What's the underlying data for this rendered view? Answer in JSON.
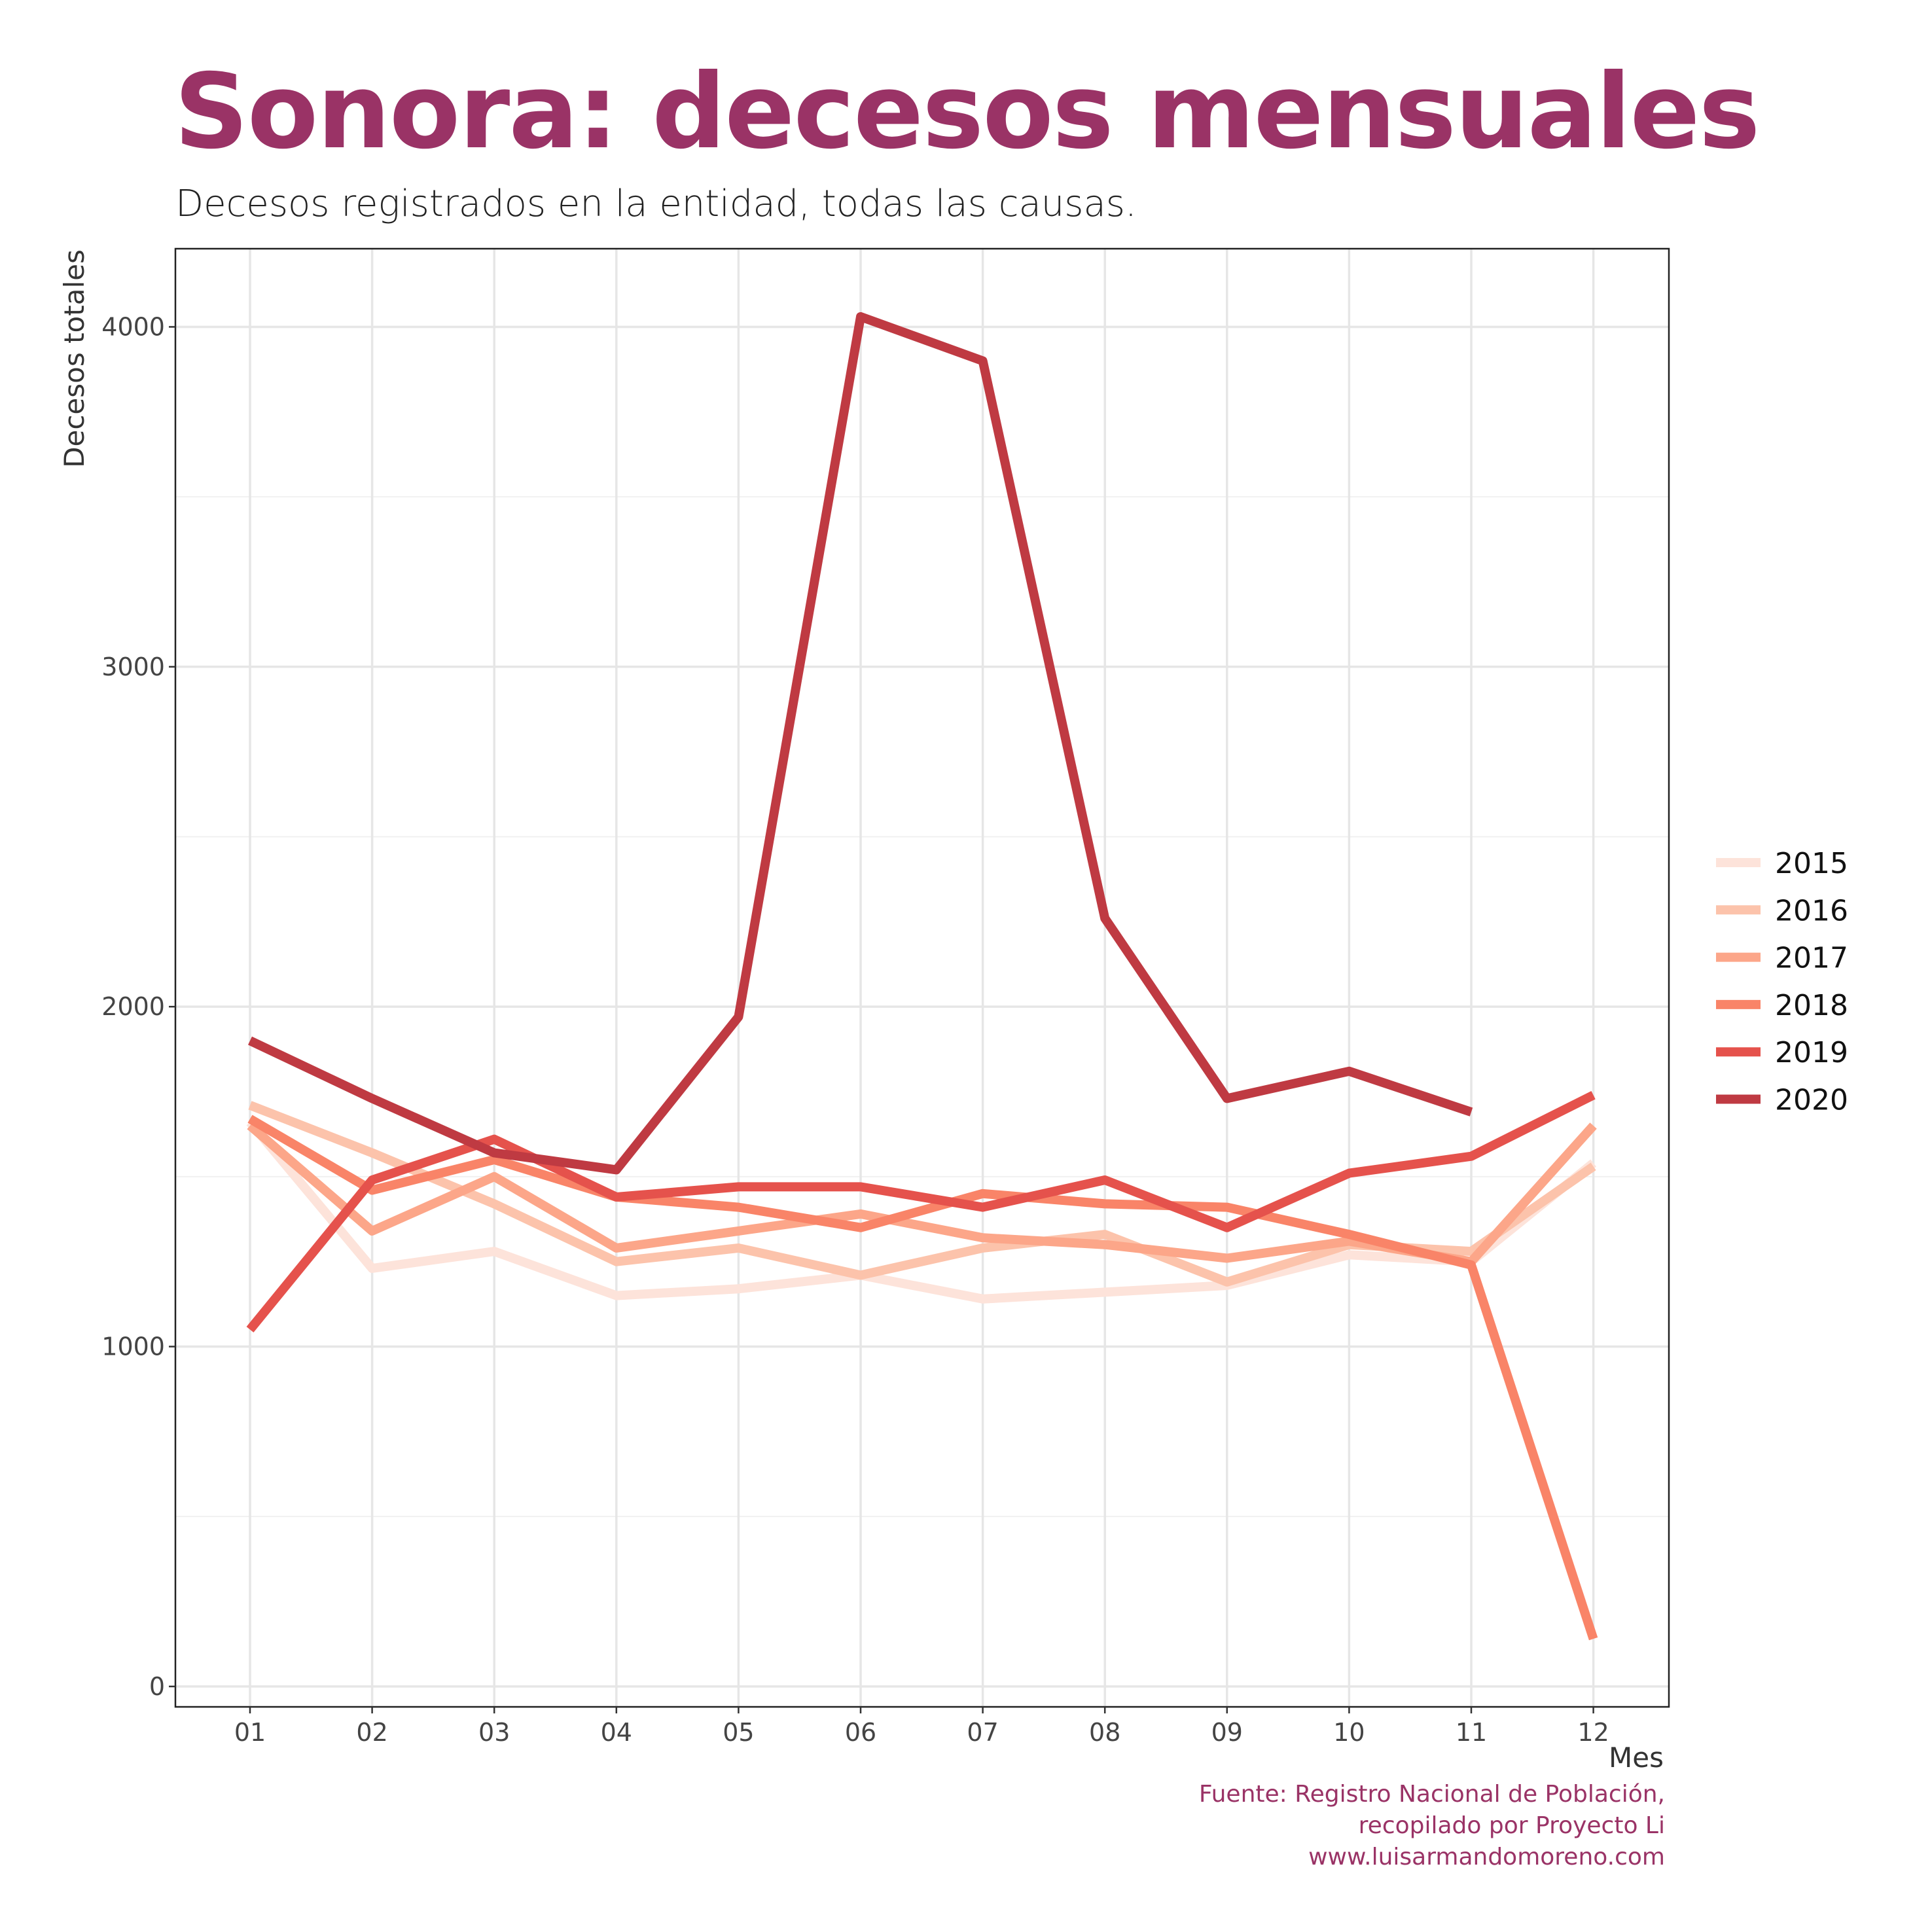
{
  "title": "Sonora: decesos mensuales",
  "subtitle": "Decesos registrados en la entidad, todas las causas.",
  "caption": [
    "Fuente: Registro Nacional de Población,",
    "recopilado por Proyecto Li",
    "www.luisarmandomoreno.com"
  ],
  "colors": {
    "title": "#9a3366",
    "caption": "#9a3366"
  },
  "chart_data": {
    "type": "line",
    "xlabel": "Mes",
    "ylabel": "Decesos totales",
    "categories": [
      "01",
      "02",
      "03",
      "04",
      "05",
      "06",
      "07",
      "08",
      "09",
      "10",
      "11",
      "12"
    ],
    "yticks": [
      0,
      1000,
      2000,
      3000,
      4000
    ],
    "ylim": [
      -60,
      4230
    ],
    "grid": true,
    "legend_position": "right",
    "series": [
      {
        "name": "2015",
        "color": "#fde3da",
        "values": [
          1660,
          1230,
          1280,
          1150,
          1170,
          1210,
          1140,
          1160,
          1180,
          1270,
          1250,
          1540
        ]
      },
      {
        "name": "2016",
        "color": "#fcc3ab",
        "values": [
          1710,
          1570,
          1420,
          1250,
          1290,
          1210,
          1290,
          1330,
          1190,
          1300,
          1280,
          1530
        ]
      },
      {
        "name": "2017",
        "color": "#fca689",
        "values": [
          1650,
          1340,
          1500,
          1290,
          1340,
          1390,
          1320,
          1300,
          1260,
          1310,
          1250,
          1650
        ]
      },
      {
        "name": "2018",
        "color": "#f98468",
        "values": [
          1670,
          1460,
          1550,
          1440,
          1410,
          1350,
          1450,
          1420,
          1410,
          1330,
          1240,
          140
        ]
      },
      {
        "name": "2019",
        "color": "#e5524c",
        "values": [
          1050,
          1490,
          1610,
          1440,
          1470,
          1470,
          1410,
          1490,
          1350,
          1510,
          1560,
          1740
        ]
      },
      {
        "name": "2020",
        "color": "#bf3a42",
        "values": [
          1900,
          1730,
          1570,
          1520,
          1970,
          4030,
          3900,
          2260,
          1730,
          1810,
          1690,
          null
        ]
      }
    ]
  }
}
